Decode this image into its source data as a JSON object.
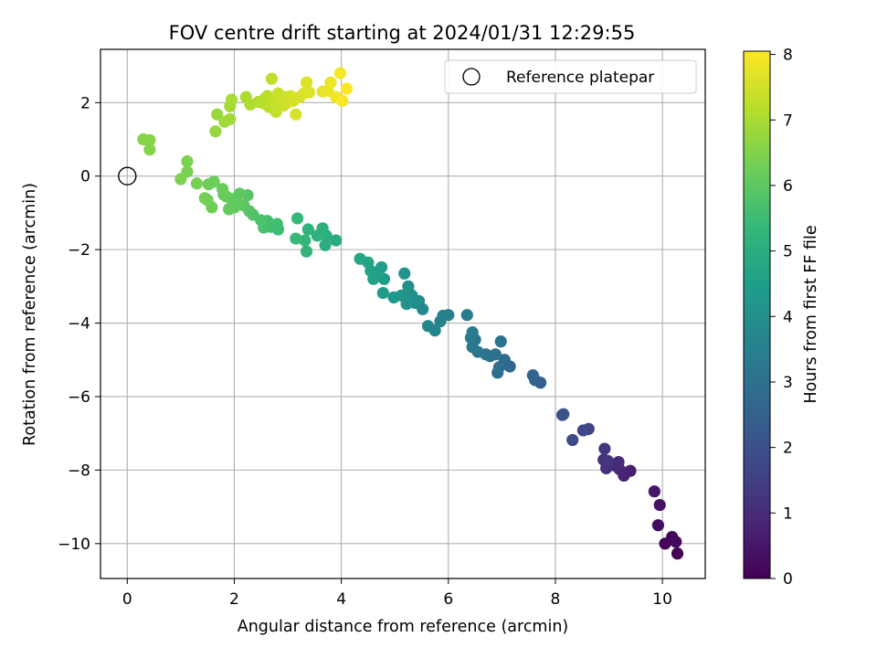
{
  "chart_data": {
    "type": "scatter",
    "title": "FOV centre drift starting at 2024/01/31 12:29:55",
    "xlabel": "Angular distance from reference (arcmin)",
    "ylabel": "Rotation from reference (arcmin)",
    "xlim": [
      -0.5,
      10.8
    ],
    "ylim": [
      -10.95,
      3.45
    ],
    "xticks": [
      0,
      2,
      4,
      6,
      8,
      10
    ],
    "yticks": [
      -10,
      -8,
      -6,
      -4,
      -2,
      0,
      2
    ],
    "grid": true,
    "legend": {
      "placement": "top-right",
      "entries": [
        "Reference platepar"
      ]
    },
    "reference_point": {
      "x": 0,
      "y": 0,
      "label": "Reference platepar"
    },
    "colorbar": {
      "label": "Hours from first FF file",
      "colormap": "viridis",
      "range": [
        0,
        8.05
      ],
      "ticks": [
        0,
        1,
        2,
        3,
        4,
        5,
        6,
        7,
        8
      ]
    },
    "series": [
      {
        "points": [
          {
            "x": 10.28,
            "y": -10.27,
            "c": 0.0
          },
          {
            "x": 10.05,
            "y": -10.0,
            "c": 0.05
          },
          {
            "x": 10.18,
            "y": -9.82,
            "c": 0.1
          },
          {
            "x": 10.25,
            "y": -9.95,
            "c": 0.15
          },
          {
            "x": 9.92,
            "y": -9.5,
            "c": 0.25
          },
          {
            "x": 9.95,
            "y": -8.95,
            "c": 0.4
          },
          {
            "x": 9.85,
            "y": -8.58,
            "c": 0.5
          },
          {
            "x": 9.4,
            "y": -8.02,
            "c": 0.7
          },
          {
            "x": 9.28,
            "y": -8.15,
            "c": 0.8
          },
          {
            "x": 9.2,
            "y": -7.98,
            "c": 0.9
          },
          {
            "x": 9.12,
            "y": -7.88,
            "c": 0.95
          },
          {
            "x": 9.18,
            "y": -7.78,
            "c": 1.0
          },
          {
            "x": 8.95,
            "y": -7.95,
            "c": 1.1
          },
          {
            "x": 8.9,
            "y": -7.72,
            "c": 1.15
          },
          {
            "x": 8.98,
            "y": -7.75,
            "c": 1.2
          },
          {
            "x": 8.92,
            "y": -7.42,
            "c": 1.3
          },
          {
            "x": 8.62,
            "y": -6.88,
            "c": 1.6
          },
          {
            "x": 8.52,
            "y": -6.92,
            "c": 1.7
          },
          {
            "x": 8.32,
            "y": -7.18,
            "c": 1.8
          },
          {
            "x": 8.13,
            "y": -6.5,
            "c": 1.9
          },
          {
            "x": 8.15,
            "y": -6.48,
            "c": 2.0
          },
          {
            "x": 7.72,
            "y": -5.62,
            "c": 2.4
          },
          {
            "x": 7.62,
            "y": -5.55,
            "c": 2.5
          },
          {
            "x": 7.58,
            "y": -5.42,
            "c": 2.55
          },
          {
            "x": 7.15,
            "y": -5.18,
            "c": 2.7
          },
          {
            "x": 7.05,
            "y": -5.0,
            "c": 2.8
          },
          {
            "x": 6.92,
            "y": -5.35,
            "c": 2.85
          },
          {
            "x": 6.95,
            "y": -5.2,
            "c": 2.9
          },
          {
            "x": 6.88,
            "y": -4.85,
            "c": 2.95
          },
          {
            "x": 6.78,
            "y": -4.9,
            "c": 3.0
          },
          {
            "x": 6.7,
            "y": -4.85,
            "c": 3.05
          },
          {
            "x": 6.98,
            "y": -4.5,
            "c": 3.1
          },
          {
            "x": 6.55,
            "y": -4.78,
            "c": 3.15
          },
          {
            "x": 6.45,
            "y": -4.65,
            "c": 3.2
          },
          {
            "x": 6.5,
            "y": -4.45,
            "c": 3.25
          },
          {
            "x": 6.42,
            "y": -4.4,
            "c": 3.3
          },
          {
            "x": 6.45,
            "y": -4.25,
            "c": 3.35
          },
          {
            "x": 6.35,
            "y": -3.78,
            "c": 3.4
          },
          {
            "x": 6.0,
            "y": -3.78,
            "c": 3.5
          },
          {
            "x": 5.9,
            "y": -3.8,
            "c": 3.55
          },
          {
            "x": 5.85,
            "y": -3.95,
            "c": 3.6
          },
          {
            "x": 5.75,
            "y": -4.2,
            "c": 3.65
          },
          {
            "x": 5.62,
            "y": -4.08,
            "c": 3.7
          },
          {
            "x": 5.52,
            "y": -3.62,
            "c": 3.8
          },
          {
            "x": 5.45,
            "y": -3.4,
            "c": 3.85
          },
          {
            "x": 5.38,
            "y": -3.45,
            "c": 3.9
          },
          {
            "x": 5.32,
            "y": -3.25,
            "c": 3.95
          },
          {
            "x": 5.25,
            "y": -3.0,
            "c": 4.0
          },
          {
            "x": 5.28,
            "y": -3.2,
            "c": 4.05
          },
          {
            "x": 5.22,
            "y": -3.48,
            "c": 4.1
          },
          {
            "x": 5.18,
            "y": -2.65,
            "c": 4.15
          },
          {
            "x": 5.12,
            "y": -3.25,
            "c": 4.2
          },
          {
            "x": 4.98,
            "y": -3.3,
            "c": 4.3
          },
          {
            "x": 4.78,
            "y": -3.18,
            "c": 4.4
          },
          {
            "x": 4.8,
            "y": -2.8,
            "c": 4.45
          },
          {
            "x": 4.75,
            "y": -2.48,
            "c": 4.5
          },
          {
            "x": 4.65,
            "y": -2.72,
            "c": 4.55
          },
          {
            "x": 4.6,
            "y": -2.8,
            "c": 4.6
          },
          {
            "x": 4.55,
            "y": -2.58,
            "c": 4.65
          },
          {
            "x": 4.5,
            "y": -2.35,
            "c": 4.7
          },
          {
            "x": 4.35,
            "y": -2.25,
            "c": 4.75
          },
          {
            "x": 3.9,
            "y": -1.75,
            "c": 4.9
          },
          {
            "x": 3.7,
            "y": -1.88,
            "c": 5.0
          },
          {
            "x": 3.72,
            "y": -1.62,
            "c": 5.05
          },
          {
            "x": 3.65,
            "y": -1.42,
            "c": 5.1
          },
          {
            "x": 3.55,
            "y": -1.62,
            "c": 5.15
          },
          {
            "x": 3.38,
            "y": -1.45,
            "c": 5.2
          },
          {
            "x": 3.35,
            "y": -2.05,
            "c": 5.25
          },
          {
            "x": 3.32,
            "y": -1.75,
            "c": 5.3
          },
          {
            "x": 3.18,
            "y": -1.15,
            "c": 5.35
          },
          {
            "x": 3.15,
            "y": -1.7,
            "c": 5.4
          },
          {
            "x": 2.82,
            "y": -1.45,
            "c": 5.5
          },
          {
            "x": 2.8,
            "y": -1.3,
            "c": 5.55
          },
          {
            "x": 2.68,
            "y": -1.38,
            "c": 5.6
          },
          {
            "x": 2.62,
            "y": -1.22,
            "c": 5.65
          },
          {
            "x": 2.55,
            "y": -1.4,
            "c": 5.7
          },
          {
            "x": 2.5,
            "y": -1.2,
            "c": 5.75
          },
          {
            "x": 2.35,
            "y": -1.05,
            "c": 5.8
          },
          {
            "x": 2.28,
            "y": -0.95,
            "c": 5.85
          },
          {
            "x": 2.25,
            "y": -0.52,
            "c": 5.9
          },
          {
            "x": 2.18,
            "y": -0.8,
            "c": 5.95
          },
          {
            "x": 2.1,
            "y": -0.48,
            "c": 6.0
          },
          {
            "x": 2.05,
            "y": -0.72,
            "c": 6.02
          },
          {
            "x": 2.0,
            "y": -0.85,
            "c": 6.05
          },
          {
            "x": 1.95,
            "y": -0.62,
            "c": 6.08
          },
          {
            "x": 1.9,
            "y": -0.9,
            "c": 6.1
          },
          {
            "x": 1.85,
            "y": -0.55,
            "c": 6.12
          },
          {
            "x": 1.8,
            "y": -0.5,
            "c": 6.15
          },
          {
            "x": 1.78,
            "y": -0.35,
            "c": 6.18
          },
          {
            "x": 1.62,
            "y": -0.15,
            "c": 6.22
          },
          {
            "x": 1.58,
            "y": -0.85,
            "c": 6.25
          },
          {
            "x": 1.52,
            "y": -0.22,
            "c": 6.28
          },
          {
            "x": 1.5,
            "y": -0.65,
            "c": 6.3
          },
          {
            "x": 1.45,
            "y": -0.6,
            "c": 6.32
          },
          {
            "x": 1.3,
            "y": -0.2,
            "c": 6.36
          },
          {
            "x": 1.12,
            "y": 0.12,
            "c": 6.4
          },
          {
            "x": 1.12,
            "y": 0.4,
            "c": 6.42
          },
          {
            "x": 1.0,
            "y": -0.08,
            "c": 6.45
          },
          {
            "x": 0.42,
            "y": 0.72,
            "c": 6.52
          },
          {
            "x": 0.42,
            "y": 0.98,
            "c": 6.55
          },
          {
            "x": 0.3,
            "y": 1.0,
            "c": 6.58
          },
          {
            "x": 1.65,
            "y": 1.22,
            "c": 6.75
          },
          {
            "x": 1.68,
            "y": 1.68,
            "c": 6.8
          },
          {
            "x": 1.82,
            "y": 1.48,
            "c": 6.85
          },
          {
            "x": 1.92,
            "y": 1.55,
            "c": 6.9
          },
          {
            "x": 1.92,
            "y": 1.9,
            "c": 6.95
          },
          {
            "x": 1.95,
            "y": 2.08,
            "c": 7.0
          },
          {
            "x": 2.22,
            "y": 2.15,
            "c": 7.05
          },
          {
            "x": 2.3,
            "y": 1.95,
            "c": 7.08
          },
          {
            "x": 2.45,
            "y": 2.02,
            "c": 7.1
          },
          {
            "x": 2.55,
            "y": 1.98,
            "c": 7.15
          },
          {
            "x": 2.58,
            "y": 2.12,
            "c": 7.18
          },
          {
            "x": 2.62,
            "y": 2.18,
            "c": 7.2
          },
          {
            "x": 2.65,
            "y": 1.88,
            "c": 7.22
          },
          {
            "x": 2.68,
            "y": 2.0,
            "c": 7.25
          },
          {
            "x": 2.7,
            "y": 2.65,
            "c": 7.28
          },
          {
            "x": 2.72,
            "y": 2.08,
            "c": 7.3
          },
          {
            "x": 2.78,
            "y": 1.75,
            "c": 7.32
          },
          {
            "x": 2.8,
            "y": 1.95,
            "c": 7.35
          },
          {
            "x": 2.82,
            "y": 2.25,
            "c": 7.38
          },
          {
            "x": 2.88,
            "y": 2.05,
            "c": 7.4
          },
          {
            "x": 2.92,
            "y": 1.92,
            "c": 7.42
          },
          {
            "x": 2.95,
            "y": 2.15,
            "c": 7.45
          },
          {
            "x": 3.0,
            "y": 2.0,
            "c": 7.48
          },
          {
            "x": 3.05,
            "y": 2.18,
            "c": 7.5
          },
          {
            "x": 3.1,
            "y": 2.05,
            "c": 7.52
          },
          {
            "x": 3.15,
            "y": 1.68,
            "c": 7.55
          },
          {
            "x": 3.22,
            "y": 2.15,
            "c": 7.58
          },
          {
            "x": 3.3,
            "y": 2.25,
            "c": 7.6
          },
          {
            "x": 3.35,
            "y": 2.55,
            "c": 7.62
          },
          {
            "x": 3.4,
            "y": 2.28,
            "c": 7.65
          },
          {
            "x": 3.65,
            "y": 2.3,
            "c": 7.75
          },
          {
            "x": 3.75,
            "y": 2.32,
            "c": 7.8
          },
          {
            "x": 3.8,
            "y": 2.55,
            "c": 7.85
          },
          {
            "x": 3.9,
            "y": 2.15,
            "c": 7.9
          },
          {
            "x": 3.98,
            "y": 2.8,
            "c": 7.95
          },
          {
            "x": 4.02,
            "y": 2.05,
            "c": 8.0
          },
          {
            "x": 4.1,
            "y": 2.38,
            "c": 8.05
          }
        ]
      }
    ]
  }
}
